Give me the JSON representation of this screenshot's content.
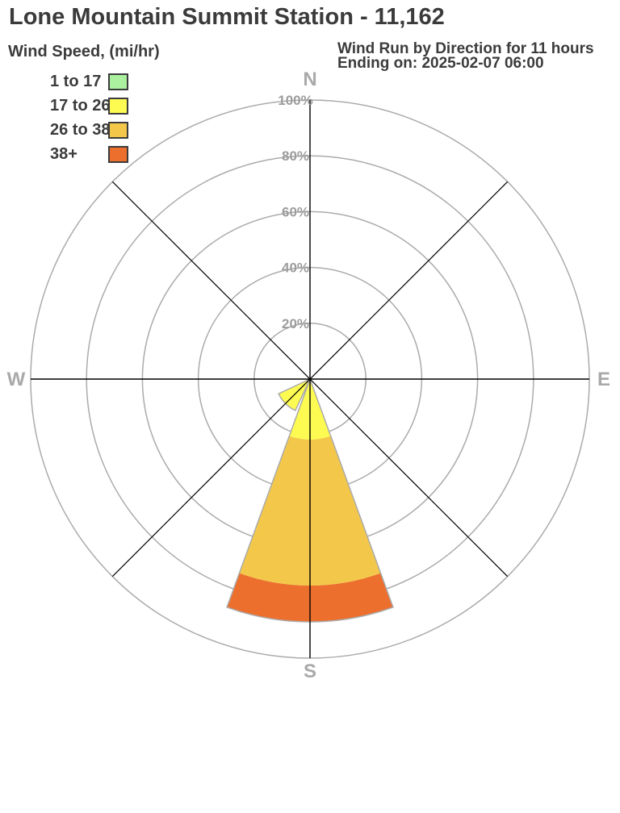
{
  "title": "Lone Mountain Summit Station - 11,162",
  "legend": {
    "heading": "Wind Speed, (mi/hr)",
    "items": [
      {
        "label": "1 to 17",
        "color": "#abf1a0"
      },
      {
        "label": "17 to 26",
        "color": "#fdfa52"
      },
      {
        "label": "26 to 38",
        "color": "#f3c84a"
      },
      {
        "label": "38+",
        "color": "#ec6f2e"
      }
    ]
  },
  "subtitle": {
    "line1": "Wind Run by Direction for 11 hours",
    "line2": "Ending on: 2025-02-07 06:00"
  },
  "chart_data": {
    "type": "wind-rose",
    "units": "percent of total wind run",
    "ring_percents": [
      20,
      40,
      60,
      80,
      100
    ],
    "ring_labels": [
      "20%",
      "40%",
      "60%",
      "80%",
      "100%"
    ],
    "axis_labels": {
      "n": "N",
      "e": "E",
      "s": "S",
      "w": "W"
    },
    "sector_width_deg": 40,
    "petals": [
      {
        "direction": "S",
        "azimuth_deg": 180,
        "total_pct": 87,
        "segments": [
          {
            "band": "17 to 26",
            "from_pct": 0,
            "to_pct": 21.7,
            "color": "#fdfa52"
          },
          {
            "band": "26 to 38",
            "from_pct": 21.7,
            "to_pct": 74.0,
            "color": "#f3c84a"
          },
          {
            "band": "38+",
            "from_pct": 74.0,
            "to_pct": 87.0,
            "color": "#ec6f2e"
          }
        ]
      },
      {
        "direction": "SW",
        "azimuth_deg": 225,
        "total_pct": 12.4,
        "segments": [
          {
            "band": "17 to 26",
            "from_pct": 0,
            "to_pct": 12.4,
            "color": "#fdfa52"
          }
        ]
      }
    ],
    "colors": {
      "grid": "#ababab",
      "axis": "#000000",
      "compass_labels": "#a9a9a9",
      "ring_labels": "#9c9c9c"
    }
  }
}
